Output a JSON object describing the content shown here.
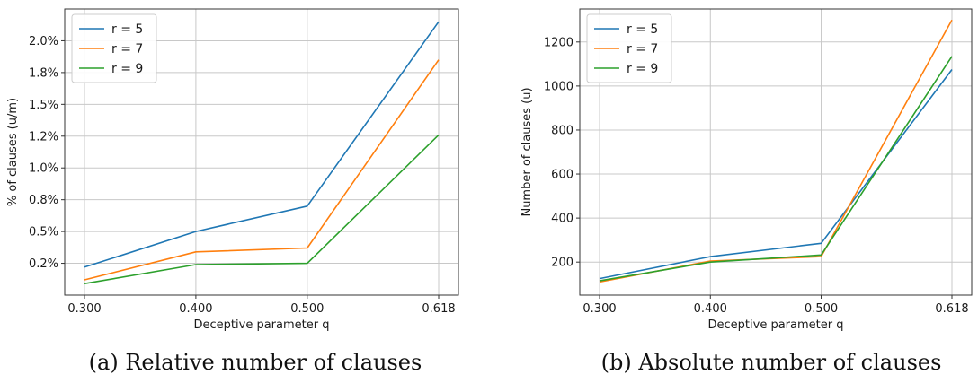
{
  "chart_data": [
    {
      "type": "line",
      "caption": "(a) Relative number of clauses",
      "xlabel": "Deceptive parameter q",
      "ylabel": "% of clauses (u/m)",
      "x": [
        0.3,
        0.4,
        0.5,
        0.618
      ],
      "xtick_labels": [
        "0.300",
        "0.400",
        "0.500",
        "0.618"
      ],
      "ylim": [
        0.0,
        2.25
      ],
      "ytick_values": [
        0.25,
        0.5,
        0.75,
        1.0,
        1.25,
        1.5,
        1.75,
        2.0
      ],
      "ytick_labels": [
        "0.2%",
        "0.5%",
        "0.8%",
        "1.0%",
        "1.2%",
        "1.5%",
        "1.8%",
        "2.0%"
      ],
      "grid": true,
      "legend": "top-left",
      "series": [
        {
          "name": "r = 5",
          "color": "#1f77b4",
          "values": [
            0.22,
            0.5,
            0.7,
            2.15
          ]
        },
        {
          "name": "r = 7",
          "color": "#ff7f0e",
          "values": [
            0.12,
            0.34,
            0.37,
            1.85
          ]
        },
        {
          "name": "r = 9",
          "color": "#2ca02c",
          "values": [
            0.09,
            0.24,
            0.25,
            1.26
          ]
        }
      ]
    },
    {
      "type": "line",
      "caption": "(b) Absolute number of clauses",
      "xlabel": "Deceptive parameter q",
      "ylabel": "Number of clauses (u)",
      "x": [
        0.3,
        0.4,
        0.5,
        0.618
      ],
      "xtick_labels": [
        "0.300",
        "0.400",
        "0.500",
        "0.618"
      ],
      "ylim": [
        50,
        1350
      ],
      "ytick_values": [
        200,
        400,
        600,
        800,
        1000,
        1200
      ],
      "ytick_labels": [
        "200",
        "400",
        "600",
        "800",
        "1000",
        "1200"
      ],
      "grid": true,
      "legend": "top-left",
      "series": [
        {
          "name": "r = 5",
          "color": "#1f77b4",
          "values": [
            125,
            225,
            285,
            1075
          ]
        },
        {
          "name": "r = 7",
          "color": "#ff7f0e",
          "values": [
            110,
            205,
            225,
            1300
          ]
        },
        {
          "name": "r = 9",
          "color": "#2ca02c",
          "values": [
            115,
            200,
            232,
            1135
          ]
        }
      ]
    }
  ]
}
